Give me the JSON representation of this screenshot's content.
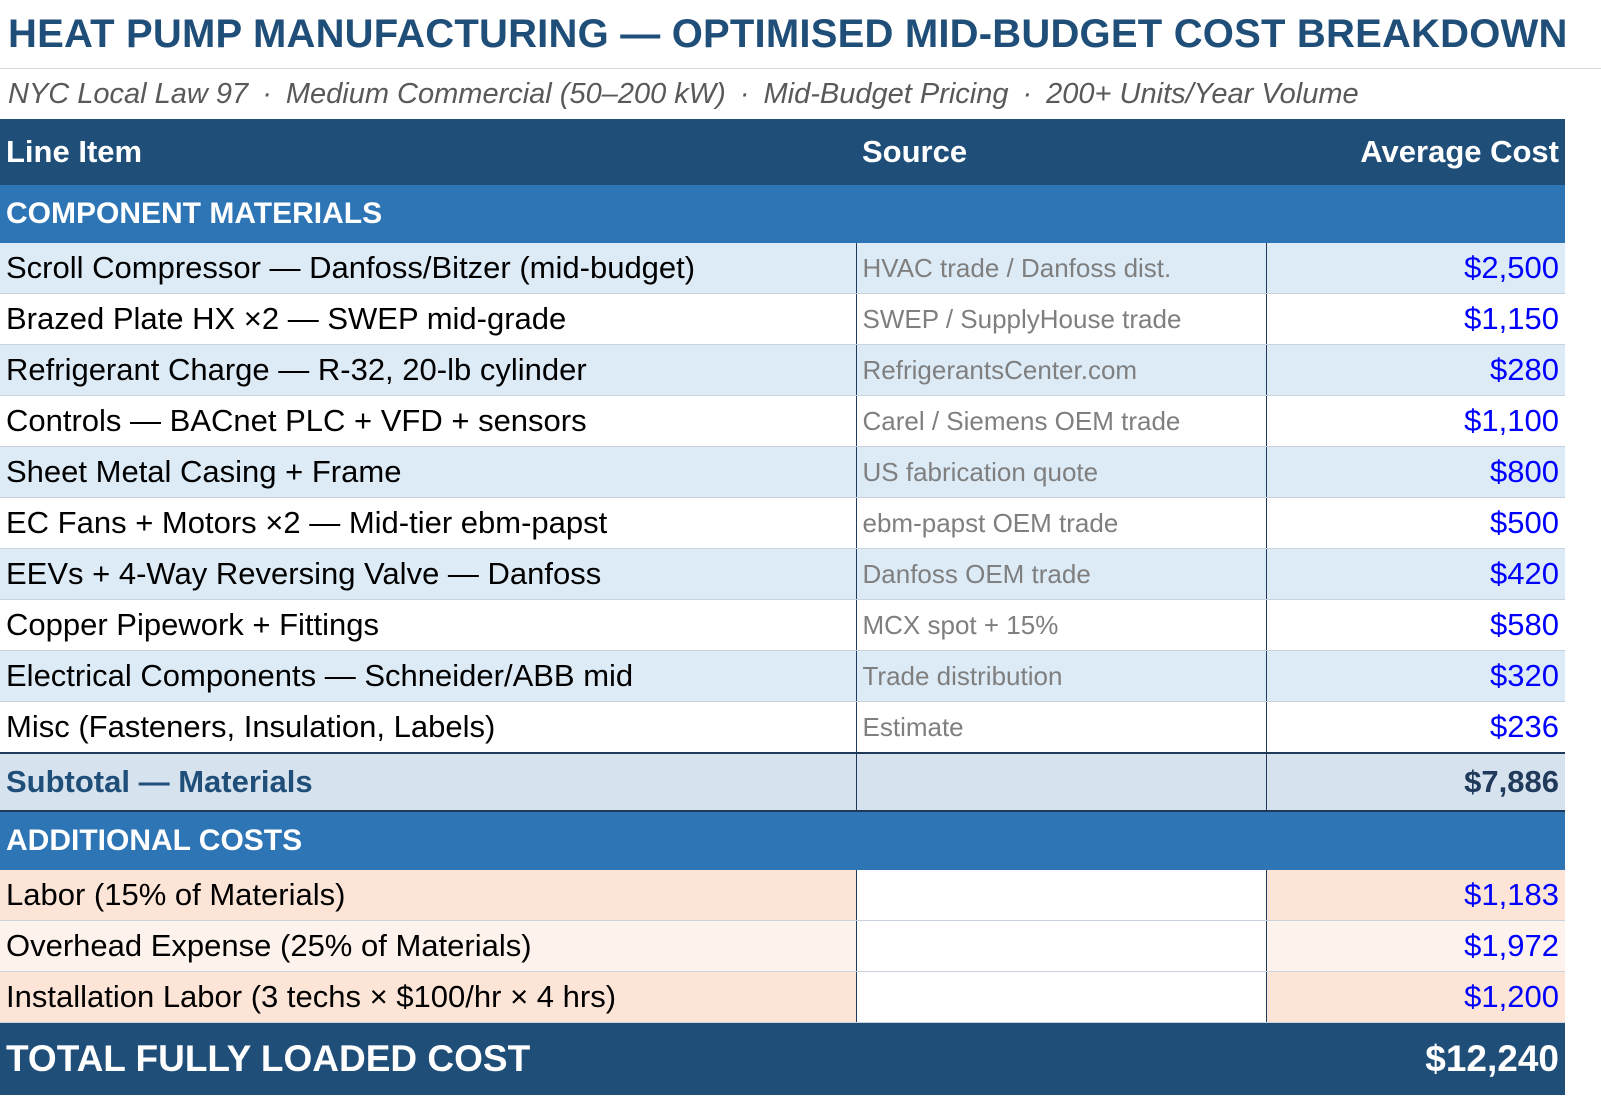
{
  "title": "HEAT PUMP MANUFACTURING — OPTIMISED MID-BUDGET COST BREAKDOWN",
  "subtitle": {
    "parts": [
      "NYC Local Law 97",
      "Medium Commercial (50–200 kW)",
      "Mid-Budget Pricing",
      "200+ Units/Year Volume"
    ],
    "separator": "·"
  },
  "header": {
    "col1": "Line Item",
    "col2": "Source",
    "col3": "Average Cost"
  },
  "colors": {
    "dark_blue": "#1f4e79",
    "section_blue": "#2e75b6",
    "value_blue": "#0000ff",
    "light_blue_band": "#ddebf7",
    "peach_band": "#fce4d6"
  },
  "materials": {
    "section_label": "COMPONENT MATERIALS",
    "rows": [
      {
        "item": "Scroll Compressor — Danfoss/Bitzer (mid-budget)",
        "source": "HVAC trade / Danfoss dist.",
        "cost": "$2,500"
      },
      {
        "item": "Brazed Plate HX ×2 — SWEP mid-grade",
        "source": "SWEP / SupplyHouse trade",
        "cost": "$1,150"
      },
      {
        "item": "Refrigerant Charge — R-32, 20-lb cylinder",
        "source": "RefrigerantsCenter.com",
        "cost": "$280"
      },
      {
        "item": "Controls — BACnet PLC + VFD + sensors",
        "source": "Carel / Siemens OEM trade",
        "cost": "$1,100"
      },
      {
        "item": "Sheet Metal Casing + Frame",
        "source": "US fabrication quote",
        "cost": "$800"
      },
      {
        "item": "EC Fans + Motors ×2 — Mid-tier ebm-papst",
        "source": "ebm-papst OEM trade",
        "cost": "$500"
      },
      {
        "item": "EEVs + 4-Way Reversing Valve — Danfoss",
        "source": "Danfoss OEM trade",
        "cost": "$420"
      },
      {
        "item": "Copper Pipework + Fittings",
        "source": "MCX spot + 15%",
        "cost": "$580"
      },
      {
        "item": "Electrical Components — Schneider/ABB mid",
        "source": "Trade distribution",
        "cost": "$320"
      },
      {
        "item": "Misc (Fasteners, Insulation, Labels)",
        "source": "Estimate",
        "cost": "$236"
      }
    ],
    "subtotal_label": "Subtotal — Materials",
    "subtotal_value": "$7,886"
  },
  "additional": {
    "section_label": "ADDITIONAL COSTS",
    "rows": [
      {
        "item": "Labor (15% of Materials)",
        "source": "",
        "cost": "$1,183"
      },
      {
        "item": "Overhead Expense (25% of Materials)",
        "source": "",
        "cost": "$1,972"
      },
      {
        "item": "Installation Labor (3 techs × $100/hr × 4 hrs)",
        "source": "",
        "cost": "$1,200"
      }
    ]
  },
  "total": {
    "label": "TOTAL FULLY LOADED COST",
    "value": "$12,240"
  }
}
